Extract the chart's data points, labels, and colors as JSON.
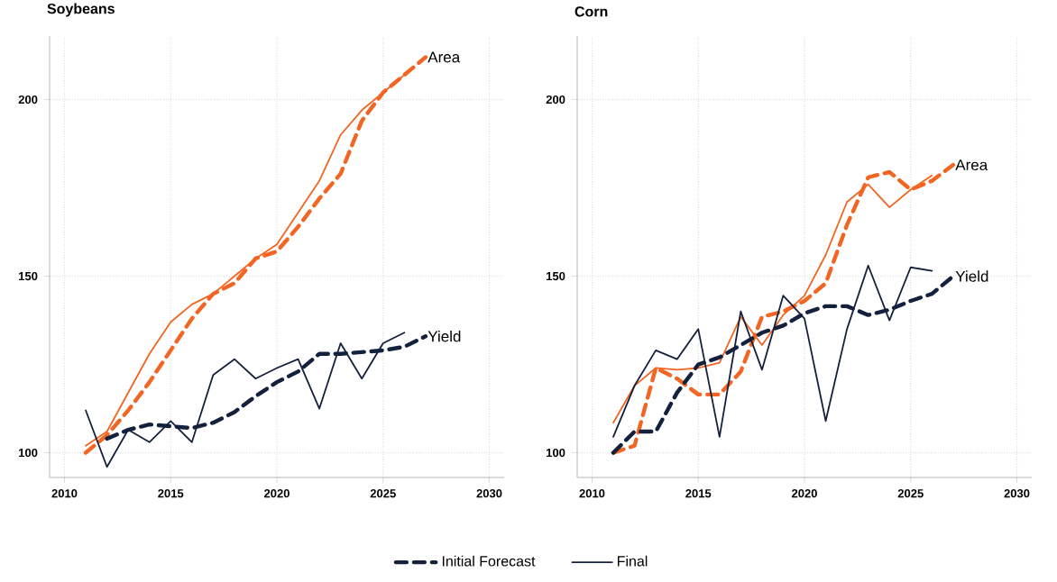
{
  "chart_data": [
    {
      "type": "line",
      "title": "Soybeans",
      "x": [
        2011,
        2012,
        2013,
        2014,
        2015,
        2016,
        2017,
        2018,
        2019,
        2020,
        2021,
        2022,
        2023,
        2024,
        2025,
        2026,
        2027
      ],
      "series": [
        {
          "color": "#f26522",
          "line_style": "dashed",
          "values": [
            100,
            105,
            112,
            120,
            129,
            138,
            145,
            148,
            155,
            157,
            164,
            172,
            179,
            194,
            202,
            207,
            212
          ]
        },
        {
          "color": "#f26522",
          "line_style": "solid",
          "values": [
            102,
            106,
            117,
            128,
            137,
            142,
            145,
            150,
            155,
            159,
            168,
            177,
            190,
            197,
            202,
            207,
            null
          ]
        },
        {
          "color": "#14213d",
          "line_style": "dashed",
          "values": [
            null,
            104,
            106.5,
            108,
            107.5,
            107,
            108.5,
            111.5,
            116,
            120,
            123,
            128,
            128,
            128.5,
            129,
            130,
            133
          ]
        },
        {
          "color": "#14213d",
          "line_style": "solid",
          "values": [
            112,
            96,
            106.5,
            103,
            109,
            103,
            122,
            126.5,
            121,
            124,
            126.5,
            112.5,
            131,
            121,
            131,
            134,
            null
          ]
        }
      ],
      "annotations": [
        "Area",
        "Yield"
      ],
      "xlim": [
        2009.3,
        2030.7
      ],
      "xticks": [
        2010,
        2015,
        2020,
        2025,
        2030
      ],
      "ylim": [
        93,
        218
      ],
      "yticks": [
        100,
        150,
        200
      ],
      "grid": true,
      "marker": "none"
    },
    {
      "type": "line",
      "title": "Corn",
      "x": [
        2011,
        2012,
        2013,
        2014,
        2015,
        2016,
        2017,
        2018,
        2019,
        2020,
        2021,
        2022,
        2023,
        2024,
        2025,
        2026,
        2027
      ],
      "series": [
        {
          "color": "#f26522",
          "line_style": "dashed",
          "values": [
            100,
            102,
            124,
            121,
            116.5,
            116.5,
            123,
            138.5,
            140,
            143,
            148,
            164.5,
            178,
            179.5,
            174.5,
            177,
            181.5
          ]
        },
        {
          "color": "#f26522",
          "line_style": "solid",
          "values": [
            108.5,
            119,
            124,
            123.5,
            124,
            125.5,
            138.5,
            130.5,
            139,
            144.5,
            156,
            171,
            176,
            169.5,
            174.5,
            178.5,
            null
          ]
        },
        {
          "name": "Initial Forecast",
          "color": "#14213d",
          "line_style": "dashed",
          "values": [
            100,
            106,
            106,
            117,
            125,
            127,
            130.5,
            134,
            136,
            139.5,
            141.5,
            141.5,
            139,
            140.5,
            143,
            145,
            150
          ]
        },
        {
          "name": "Final",
          "color": "#14213d",
          "line_style": "solid",
          "values": [
            104.5,
            119,
            129,
            126.5,
            135,
            104.5,
            140,
            123.5,
            144.5,
            138,
            109,
            135,
            153,
            137.5,
            152.5,
            151.5,
            null
          ]
        }
      ],
      "annotations": [
        "Area",
        "Yield"
      ],
      "xlim": [
        2009.3,
        2030.7
      ],
      "xticks": [
        2010,
        2015,
        2020,
        2025,
        2030
      ],
      "ylim": [
        93,
        218
      ],
      "yticks": [
        100,
        150,
        200
      ],
      "grid": true,
      "marker": "none",
      "legend": "bottom"
    }
  ]
}
